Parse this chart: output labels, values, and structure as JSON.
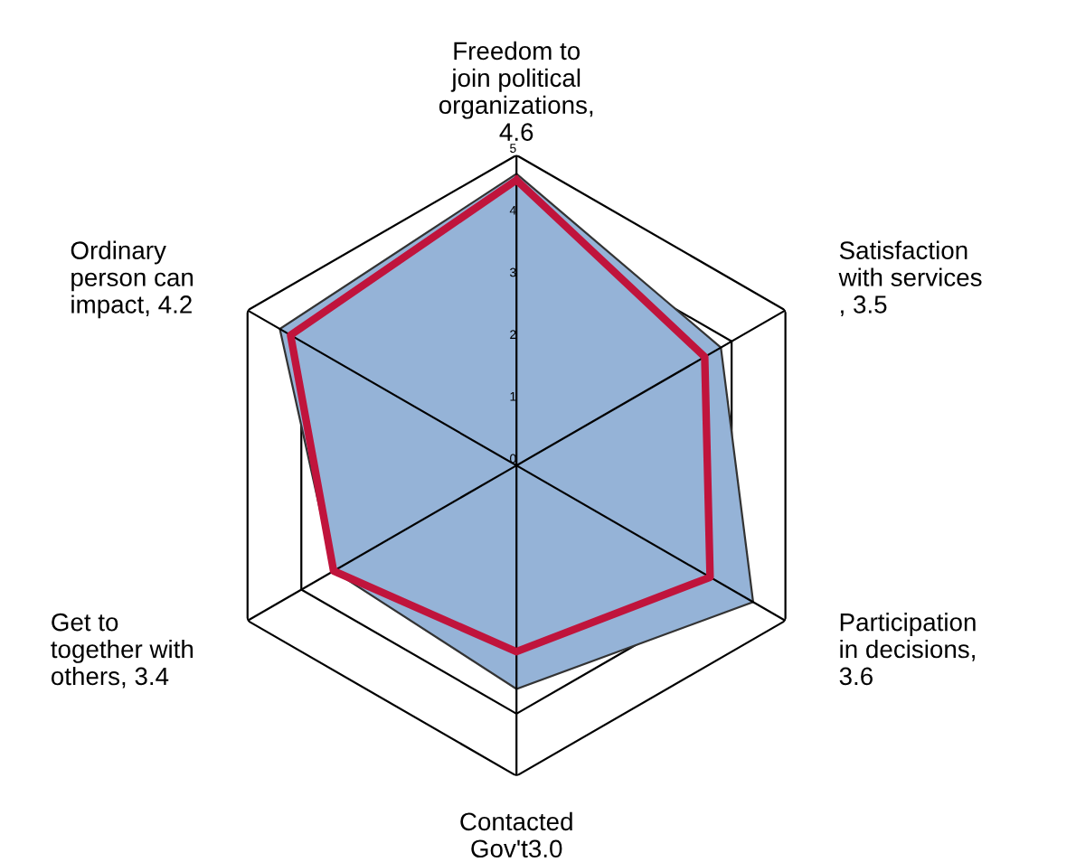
{
  "chart_data": {
    "type": "radar",
    "categories": [
      "Freedom to join political organizations, 4.6",
      "Satisfaction with services , 3.5",
      "Participation in decisions, 3.6",
      "Contacted Gov't3.0",
      "Get to together with others, 3.4",
      "Ordinary person can impact, 4.2"
    ],
    "series": [
      {
        "type": "area",
        "color": "#95b3d7",
        "values": [
          4.7,
          3.8,
          4.4,
          3.6,
          3.4,
          4.4
        ]
      },
      {
        "color": "#c0143c",
        "values": [
          4.6,
          3.5,
          3.6,
          3.0,
          3.4,
          4.2
        ]
      }
    ],
    "ylim": [
      0,
      5
    ],
    "yticks": [
      0,
      1,
      2,
      3,
      4,
      5
    ],
    "grid": true
  }
}
